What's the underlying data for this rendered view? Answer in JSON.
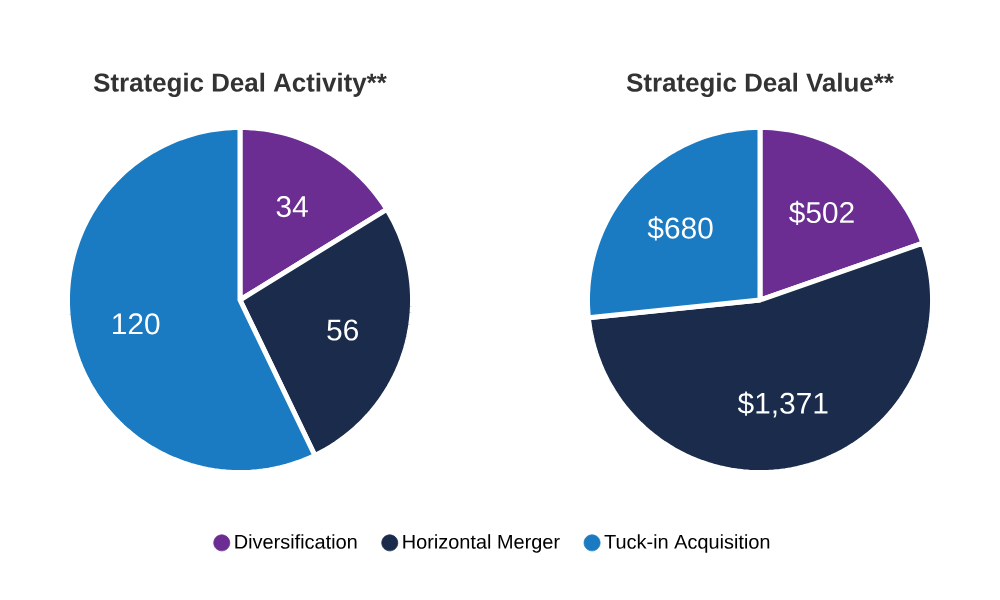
{
  "chart_data": [
    {
      "type": "pie",
      "title": "Strategic Deal Activity**",
      "categories": [
        "Diversification",
        "Horizontal Merger",
        "Tuck-in Acquisition"
      ],
      "values": [
        34,
        56,
        120
      ],
      "colors": [
        "#6b2d91",
        "#1b2b4b",
        "#1a7bc3"
      ],
      "data_labels": true,
      "legend": "bottom"
    },
    {
      "type": "pie",
      "title": "Strategic Deal Value**",
      "categories": [
        null,
        null,
        null
      ],
      "values": [
        502,
        1371,
        680
      ],
      "value_labels": [
        "$502",
        "$1,371",
        "$680"
      ],
      "colors": [
        "#6b2d91",
        "#1b2b4b",
        "#1a7bc3"
      ]
    }
  ]
}
